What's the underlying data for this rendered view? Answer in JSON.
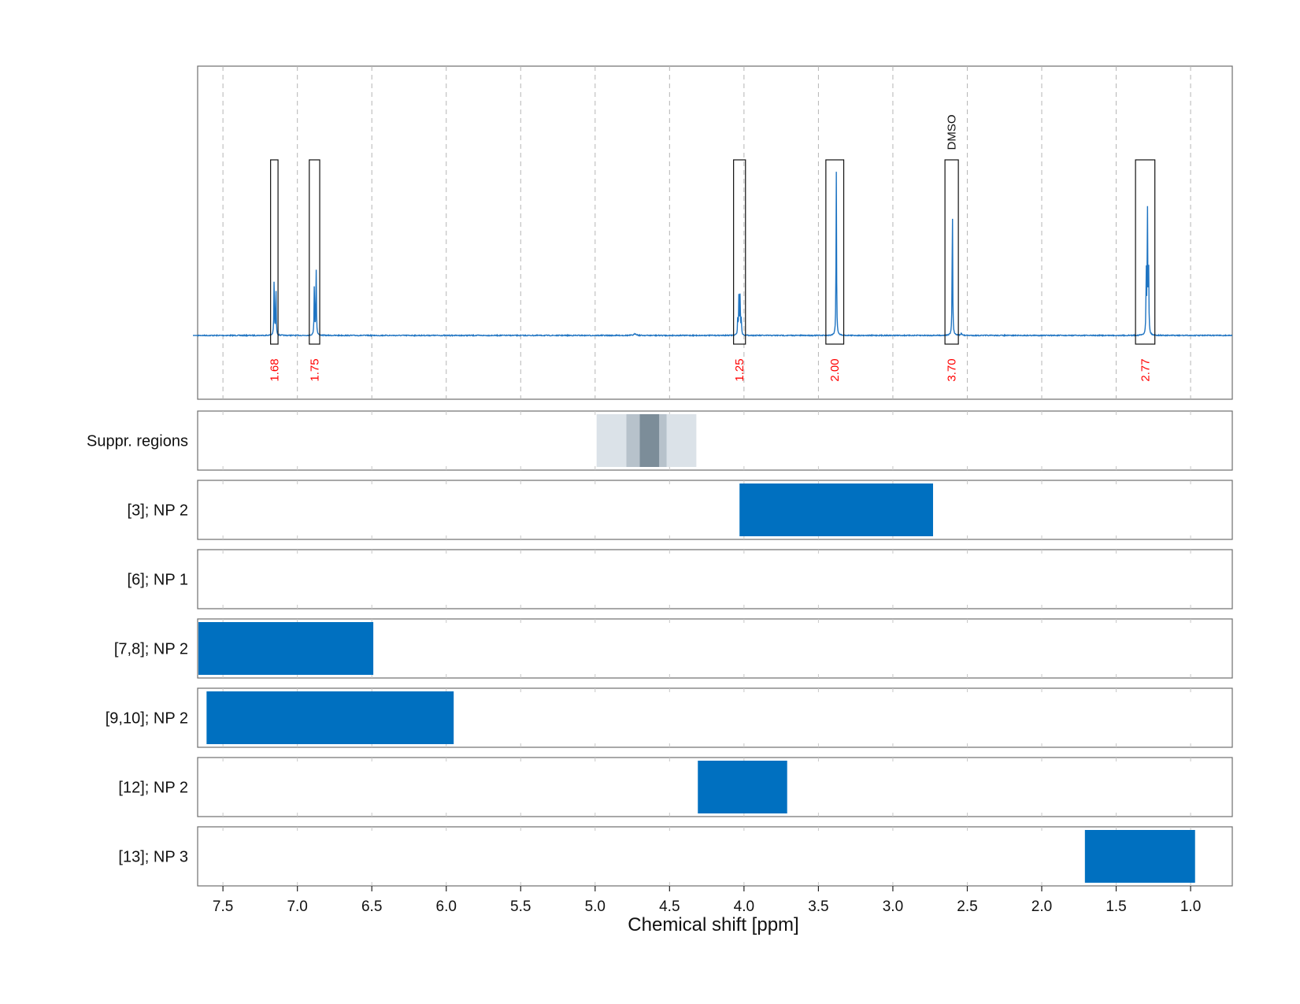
{
  "chart_data": {
    "type": "line",
    "xlabel": "Chemical shift [ppm]",
    "xlim": [
      7.67,
      0.72
    ],
    "x_ticks": [
      "7.5",
      "7.0",
      "6.5",
      "6.0",
      "5.5",
      "5.0",
      "4.5",
      "4.0",
      "3.5",
      "3.0",
      "2.5",
      "2.0",
      "1.5",
      "1.0"
    ],
    "x_tick_values": [
      7.5,
      7.0,
      6.5,
      6.0,
      5.5,
      5.0,
      4.5,
      4.0,
      3.5,
      3.0,
      2.5,
      2.0,
      1.5,
      1.0
    ],
    "grid": true,
    "spectrum": {
      "color": "#1f74c2",
      "peaks": [
        {
          "center": 7.15,
          "lines": [
            [
              -0.006,
              0.28
            ],
            [
              0.006,
              0.36
            ]
          ],
          "width": 0.002
        },
        {
          "center": 6.88,
          "lines": [
            [
              -0.006,
              0.42
            ],
            [
              0.006,
              0.33
            ]
          ],
          "width": 0.002
        },
        {
          "center": 4.03,
          "lines": [
            [
              -0.012,
              0.1
            ],
            [
              -0.004,
              0.25
            ],
            [
              0.004,
              0.25
            ],
            [
              0.012,
              0.1
            ]
          ],
          "width": 0.002
        },
        {
          "center": 3.38,
          "lines": [
            [
              0,
              1.0
            ]
          ],
          "width": 0.002
        },
        {
          "center": 2.6,
          "lines": [
            [
              0,
              0.82
            ]
          ],
          "width": 0.002
        },
        {
          "center": 1.29,
          "lines": [
            [
              -0.008,
              0.42
            ],
            [
              0,
              0.8
            ],
            [
              0.008,
              0.39
            ]
          ],
          "width": 0.002
        },
        {
          "center": 2.54,
          "lines": [
            [
              0,
              0.015
            ]
          ],
          "width": 0.004
        },
        {
          "center": 4.73,
          "lines": [
            [
              0,
              0.01
            ]
          ],
          "width": 0.01
        }
      ]
    },
    "integration_boxes": [
      {
        "from": 7.18,
        "to": 7.13,
        "label": "1.68"
      },
      {
        "from": 6.92,
        "to": 6.85,
        "label": "1.75"
      },
      {
        "from": 4.07,
        "to": 3.99,
        "label": "1.25"
      },
      {
        "from": 3.45,
        "to": 3.33,
        "label": "2.00"
      },
      {
        "from": 2.65,
        "to": 2.56,
        "label": "3.70",
        "annotation": "DMSO"
      },
      {
        "from": 1.37,
        "to": 1.24,
        "label": "2.77"
      }
    ],
    "integral_label_color": "#ff0000",
    "suppression_regions": {
      "label": "Suppr. regions",
      "bands": [
        {
          "from": 4.99,
          "to": 4.32,
          "color": "#dbe2e8"
        },
        {
          "from": 4.79,
          "to": 4.52,
          "color": "#b7c2cb"
        },
        {
          "from": 4.7,
          "to": 4.57,
          "color": "#7c8d99"
        }
      ]
    },
    "assignment_tracks": [
      {
        "label": "[3]; NP 2",
        "ranges": [
          [
            4.03,
            2.73
          ]
        ]
      },
      {
        "label": "[6]; NP 1",
        "ranges": []
      },
      {
        "label": "[7,8]; NP 2",
        "ranges": [
          [
            7.67,
            6.49
          ]
        ]
      },
      {
        "label": "[9,10]; NP 2",
        "ranges": [
          [
            7.61,
            5.95
          ]
        ]
      },
      {
        "label": "[12]; NP 2",
        "ranges": [
          [
            4.31,
            3.71
          ]
        ]
      },
      {
        "label": "[13]; NP 3",
        "ranges": [
          [
            1.71,
            0.97
          ]
        ]
      }
    ],
    "track_color": "#0070c0"
  }
}
